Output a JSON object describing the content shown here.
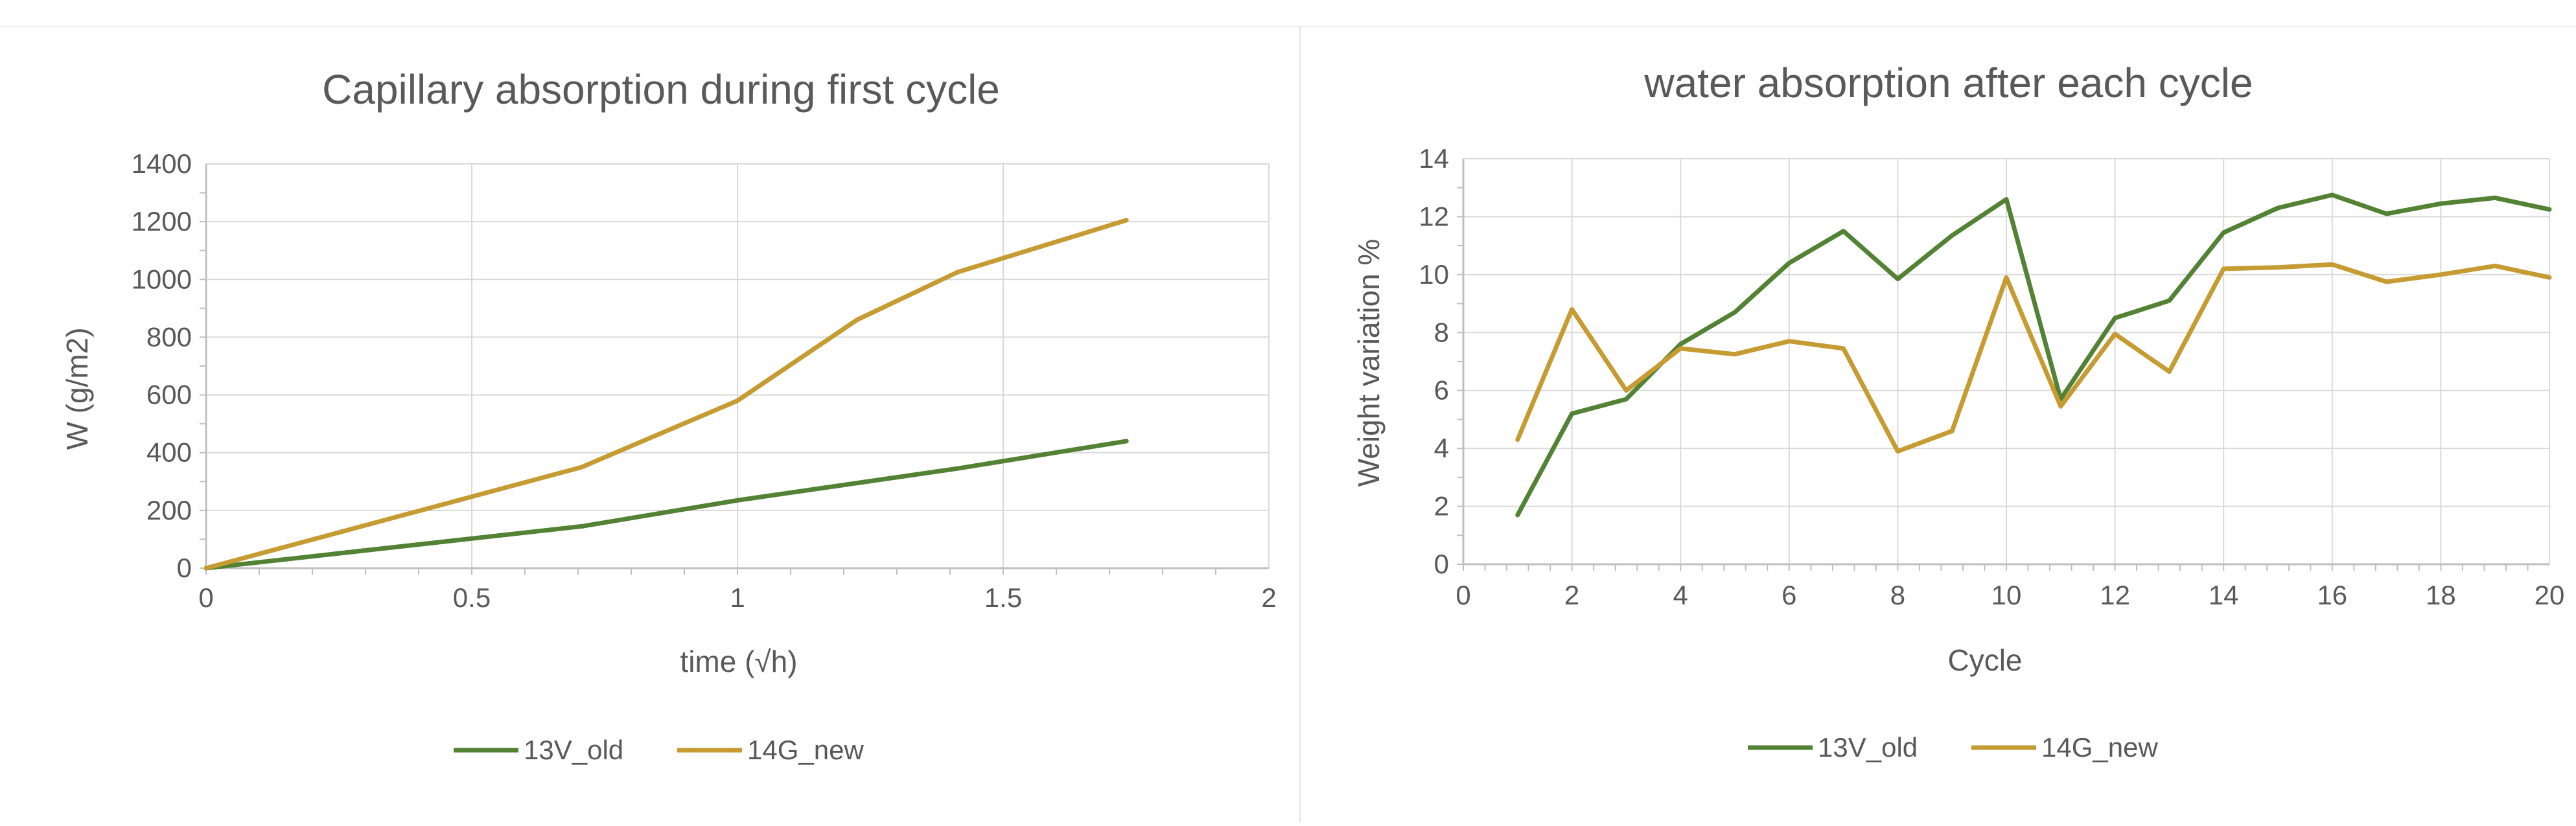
{
  "colors": {
    "series1": "#548235",
    "series2": "#c59b32",
    "grid": "#d9d9d9",
    "text": "#595959",
    "axis": "#bfbfbf"
  },
  "chart_data": [
    {
      "type": "line",
      "title": "Capillary absorption during first cycle",
      "xlabel": "time (√h)",
      "ylabel": "W (g/m2)",
      "xlim": [
        0,
        2
      ],
      "ylim": [
        0,
        1400
      ],
      "xticks": [
        0,
        0.5,
        1,
        1.5,
        2
      ],
      "xtick_labels": [
        "0",
        "0.5",
        "1",
        "1.5",
        "2"
      ],
      "yticks": [
        0,
        200,
        400,
        600,
        800,
        1000,
        1200,
        1400
      ],
      "ytick_labels": [
        "0",
        "200",
        "400",
        "600",
        "800",
        "1000",
        "1200",
        "1400"
      ],
      "grid": true,
      "legend": "bottom",
      "series": [
        {
          "name": "13V_old",
          "color": "#548235",
          "x": [
            0,
            0.707,
            1.0,
            1.414,
            1.732
          ],
          "y": [
            0,
            145,
            235,
            345,
            440
          ]
        },
        {
          "name": "14G_new",
          "color": "#c59b32",
          "x": [
            0,
            0.707,
            1.0,
            1.225,
            1.414,
            1.732
          ],
          "y": [
            0,
            350,
            580,
            860,
            1025,
            1205
          ]
        }
      ]
    },
    {
      "type": "line",
      "title": "water absorption after each cycle",
      "xlabel": "Cycle",
      "ylabel": "Weight variation %",
      "xlim": [
        0,
        20
      ],
      "ylim": [
        0,
        14
      ],
      "xticks": [
        0,
        2,
        4,
        6,
        8,
        10,
        12,
        14,
        16,
        18,
        20
      ],
      "xtick_labels": [
        "0",
        "2",
        "4",
        "6",
        "8",
        "10",
        "12",
        "14",
        "16",
        "18",
        "20"
      ],
      "yticks": [
        0,
        2,
        4,
        6,
        8,
        10,
        12,
        14
      ],
      "ytick_labels": [
        "0",
        "2",
        "4",
        "6",
        "8",
        "10",
        "12",
        "14"
      ],
      "grid": true,
      "legend": "bottom",
      "series": [
        {
          "name": "13V_old",
          "color": "#548235",
          "x": [
            1,
            2,
            3,
            4,
            5,
            6,
            7,
            8,
            9,
            10,
            11,
            12,
            13,
            14,
            15,
            16,
            17,
            18,
            19,
            20
          ],
          "y": [
            1.7,
            5.2,
            5.7,
            7.6,
            8.7,
            10.4,
            11.5,
            9.85,
            11.35,
            12.6,
            5.7,
            8.5,
            9.1,
            11.45,
            12.3,
            12.75,
            12.1,
            12.45,
            12.65,
            12.25
          ]
        },
        {
          "name": "14G_new",
          "color": "#c59b32",
          "x": [
            1,
            2,
            3,
            4,
            5,
            6,
            7,
            8,
            9,
            10,
            11,
            12,
            13,
            14,
            15,
            16,
            17,
            18,
            19,
            20
          ],
          "y": [
            4.3,
            8.8,
            6.0,
            7.45,
            7.25,
            7.7,
            7.45,
            3.9,
            4.6,
            9.9,
            5.45,
            7.95,
            6.65,
            10.2,
            10.25,
            10.35,
            9.75,
            10.0,
            10.3,
            9.9
          ]
        }
      ]
    }
  ]
}
